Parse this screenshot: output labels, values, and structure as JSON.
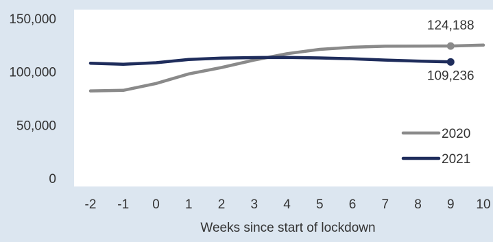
{
  "chart_data": {
    "type": "line",
    "title": "",
    "xlabel": "Weeks since start of lockdown",
    "ylabel": "",
    "x": [
      -2,
      -1,
      0,
      1,
      2,
      3,
      4,
      5,
      6,
      7,
      8,
      9,
      10
    ],
    "x_tick_labels": [
      "-2",
      "-1",
      "0",
      "1",
      "2",
      "3",
      "4",
      "5",
      "6",
      "7",
      "8",
      "9",
      "10"
    ],
    "y_tick_labels": [
      "0",
      "50,000",
      "100,000",
      "150,000"
    ],
    "y_ticks": [
      0,
      50000,
      100000,
      150000
    ],
    "ylim": [
      0,
      150000
    ],
    "xlim": [
      -2,
      10
    ],
    "grid": false,
    "legend_position": "bottom-right",
    "series": [
      {
        "name": "2020",
        "color": "#8a8a8a",
        "x": [
          -2,
          -1,
          0,
          1,
          2,
          3,
          4,
          5,
          6,
          7,
          8,
          9,
          10
        ],
        "values": [
          82000,
          82500,
          89000,
          98000,
          104000,
          111000,
          117000,
          121000,
          123000,
          124000,
          124100,
          124188,
          125000
        ]
      },
      {
        "name": "2021",
        "color": "#1f2d5c",
        "x": [
          -2,
          -1,
          0,
          1,
          2,
          3,
          4,
          5,
          6,
          7,
          8,
          9
        ],
        "values": [
          108000,
          107000,
          108500,
          111500,
          112800,
          113300,
          113500,
          113000,
          112200,
          111000,
          110000,
          109236
        ]
      }
    ],
    "annotations": [
      {
        "series": "2020",
        "x": 9,
        "label": "124,188"
      },
      {
        "series": "2021",
        "x": 9,
        "label": "109,236"
      }
    ]
  }
}
